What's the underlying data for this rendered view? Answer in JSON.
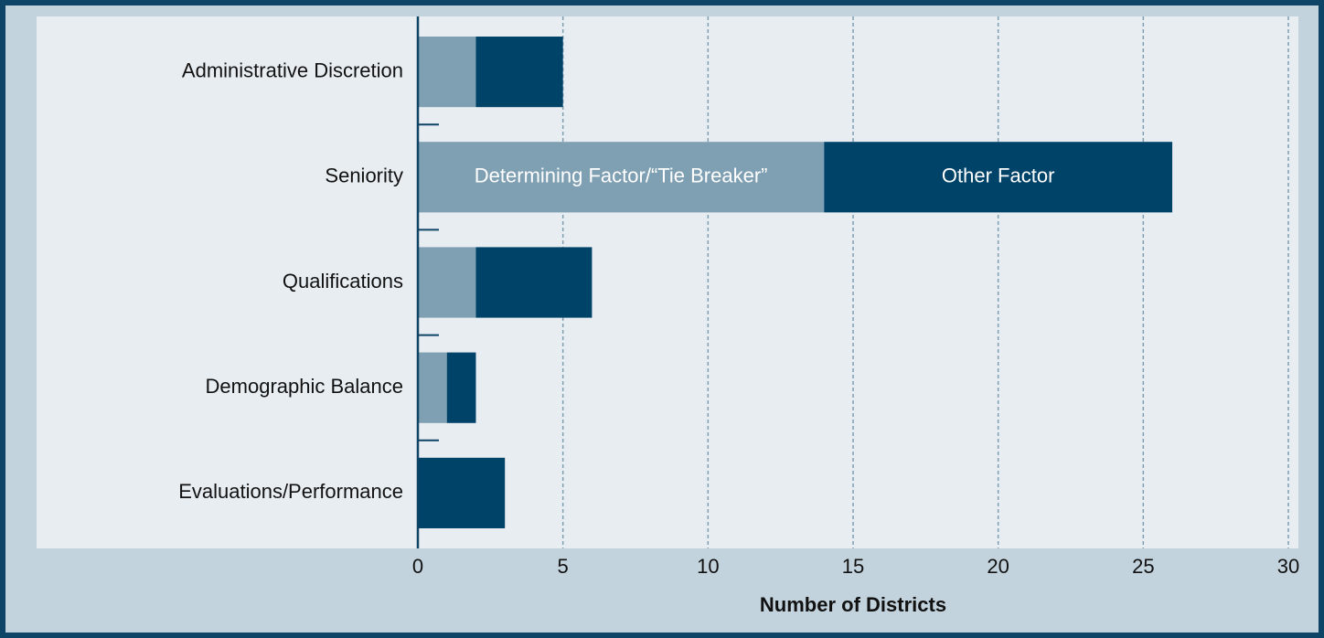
{
  "chart_data": {
    "type": "stacked_barh",
    "categories": [
      "Administrative Discretion",
      "Seniority",
      "Qualifications",
      "Demographic Balance",
      "Evaluations/Performance"
    ],
    "series": [
      {
        "name": "Determining Factor/“Tie Breaker”",
        "color": "#7f9fb2",
        "values": [
          2,
          14,
          2,
          1,
          0
        ]
      },
      {
        "name": "Other Factor",
        "color": "#004369",
        "values": [
          3,
          12,
          4,
          1,
          3
        ]
      }
    ],
    "xlabel": "Number of Districts",
    "xlim": [
      0,
      30
    ],
    "xticks": [
      0,
      5,
      10,
      15,
      20,
      25,
      30
    ],
    "grid": true
  }
}
